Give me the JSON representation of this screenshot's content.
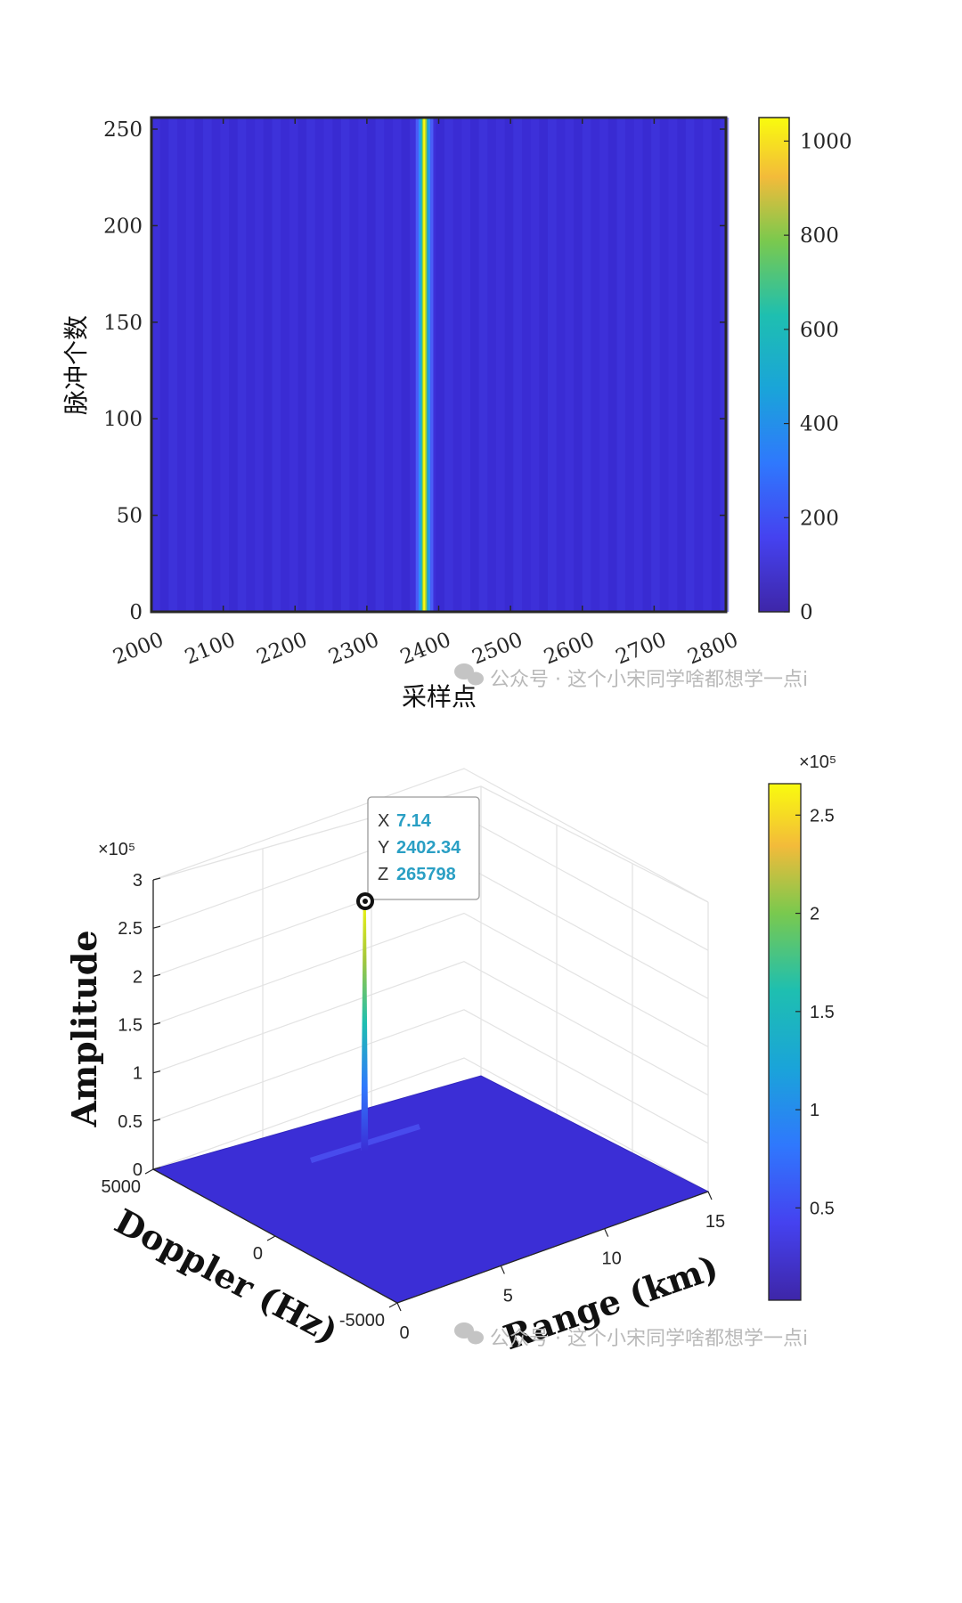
{
  "colors": {
    "base": "#3b2ed6",
    "parula_low": "#3e26a8",
    "parula_mid": "#1aa4d9",
    "parula_yellow": "#f9fb0e",
    "axis": "#262626",
    "watermark": "#b9b9b9",
    "tooltip_value": "#2a9fc4"
  },
  "chart_data": [
    {
      "type": "heatmap",
      "title": "",
      "xlabel": "采样点",
      "ylabel": "脉冲个数",
      "xlim": [
        2000,
        2800
      ],
      "ylim": [
        0,
        256
      ],
      "x_ticks": [
        "2000",
        "2100",
        "2200",
        "2300",
        "2400",
        "2500",
        "2600",
        "2700",
        "2800"
      ],
      "y_ticks": [
        "0",
        "50",
        "100",
        "150",
        "200",
        "250"
      ],
      "x_tick_values": [
        2000,
        2100,
        2200,
        2300,
        2400,
        2500,
        2600,
        2700,
        2800
      ],
      "y_tick_values": [
        0,
        50,
        100,
        150,
        200,
        250
      ],
      "colorbar": {
        "range": [
          0,
          1050
        ],
        "ticks": [
          "0",
          "200",
          "400",
          "600",
          "800",
          "1000"
        ],
        "tick_values": [
          0,
          200,
          400,
          600,
          800,
          1000
        ]
      },
      "peak": {
        "sample": 2380,
        "value": 1000
      },
      "background_level": 40,
      "watermark": "公众号 · 这个小宋同学啥都想学一点i"
    },
    {
      "type": "surface3d",
      "title": "",
      "xlabel": "Range (km)",
      "ylabel": "Doppler (Hz)",
      "zlabel": "Amplitude",
      "xlim": [
        0,
        15
      ],
      "ylim": [
        -5000,
        5000
      ],
      "zlim": [
        0,
        3
      ],
      "z_multiplier": "×10⁵",
      "x_ticks": [
        "0",
        "5",
        "10",
        "15"
      ],
      "y_ticks": [
        "5000",
        "0",
        "-5000"
      ],
      "z_ticks": [
        "0",
        "0.5",
        "1",
        "1.5",
        "2",
        "2.5",
        "3"
      ],
      "x_tick_values": [
        0,
        5,
        10,
        15
      ],
      "y_tick_values": [
        5000,
        0,
        -5000
      ],
      "z_tick_values": [
        0,
        0.5,
        1,
        1.5,
        2,
        2.5,
        3
      ],
      "colorbar": {
        "multiplier": "×10⁵",
        "range": [
          0.03,
          2.66
        ],
        "ticks": [
          "0.5",
          "1",
          "1.5",
          "2",
          "2.5"
        ],
        "tick_values": [
          0.5,
          1,
          1.5,
          2,
          2.5
        ]
      },
      "peak": {
        "x": 7.14,
        "y": 2402.34,
        "z": 265798
      },
      "datatip": {
        "x_label": "X",
        "x_value": "7.14",
        "y_label": "Y",
        "y_value": "2402.34",
        "z_label": "Z",
        "z_value": "265798"
      },
      "watermark": "公众号 · 这个小宋同学啥都想学一点i"
    }
  ]
}
